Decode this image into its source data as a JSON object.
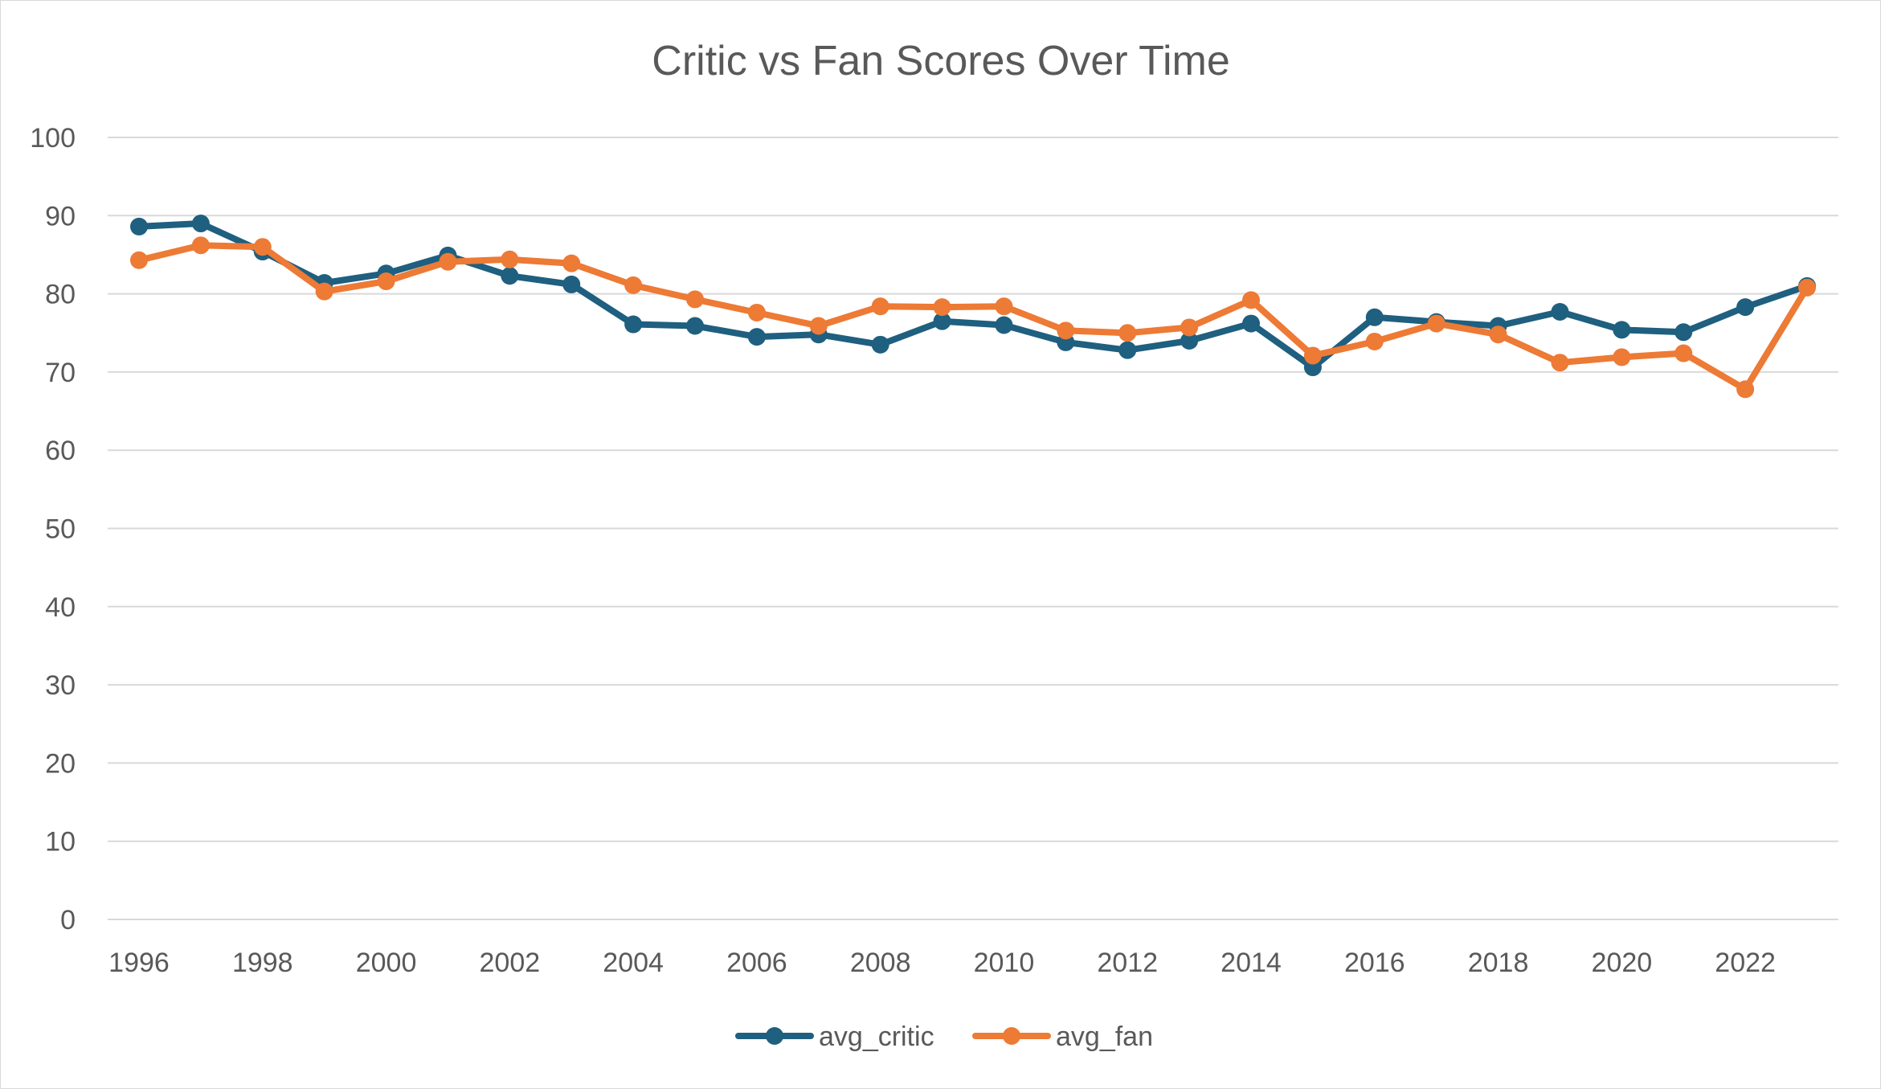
{
  "chart_data": {
    "type": "line",
    "title": "Critic vs Fan Scores Over Time",
    "xlabel": "",
    "ylabel": "",
    "x": [
      1996,
      1997,
      1998,
      1999,
      2000,
      2001,
      2002,
      2003,
      2004,
      2005,
      2006,
      2007,
      2008,
      2009,
      2010,
      2011,
      2012,
      2013,
      2014,
      2015,
      2016,
      2017,
      2018,
      2019,
      2020,
      2021,
      2022,
      2023
    ],
    "x_tick_labels": [
      "1996",
      "1998",
      "2000",
      "2002",
      "2004",
      "2006",
      "2008",
      "2010",
      "2012",
      "2014",
      "2016",
      "2018",
      "2020",
      "2022"
    ],
    "y_ticks": [
      0,
      10,
      20,
      30,
      40,
      50,
      60,
      70,
      80,
      90,
      100
    ],
    "ylim": [
      0,
      100
    ],
    "grid": true,
    "legend_position": "bottom",
    "series": [
      {
        "name": "avg_critic",
        "color": "#1f5f7f",
        "values": [
          88.6,
          89.0,
          85.4,
          81.4,
          82.6,
          84.9,
          82.3,
          81.2,
          76.1,
          75.9,
          74.5,
          74.8,
          73.5,
          76.5,
          76.0,
          73.8,
          72.8,
          74.0,
          76.2,
          70.6,
          77.0,
          76.4,
          75.9,
          77.7,
          75.4,
          75.1,
          78.3,
          81.0
        ]
      },
      {
        "name": "avg_fan",
        "color": "#ed7a35",
        "values": [
          84.3,
          86.2,
          86.0,
          80.3,
          81.6,
          84.1,
          84.4,
          83.9,
          81.1,
          79.3,
          77.6,
          75.9,
          78.4,
          78.3,
          78.4,
          75.3,
          75.0,
          75.7,
          79.2,
          72.1,
          73.9,
          76.2,
          74.8,
          71.2,
          71.9,
          72.4,
          67.8,
          80.8
        ]
      }
    ]
  }
}
